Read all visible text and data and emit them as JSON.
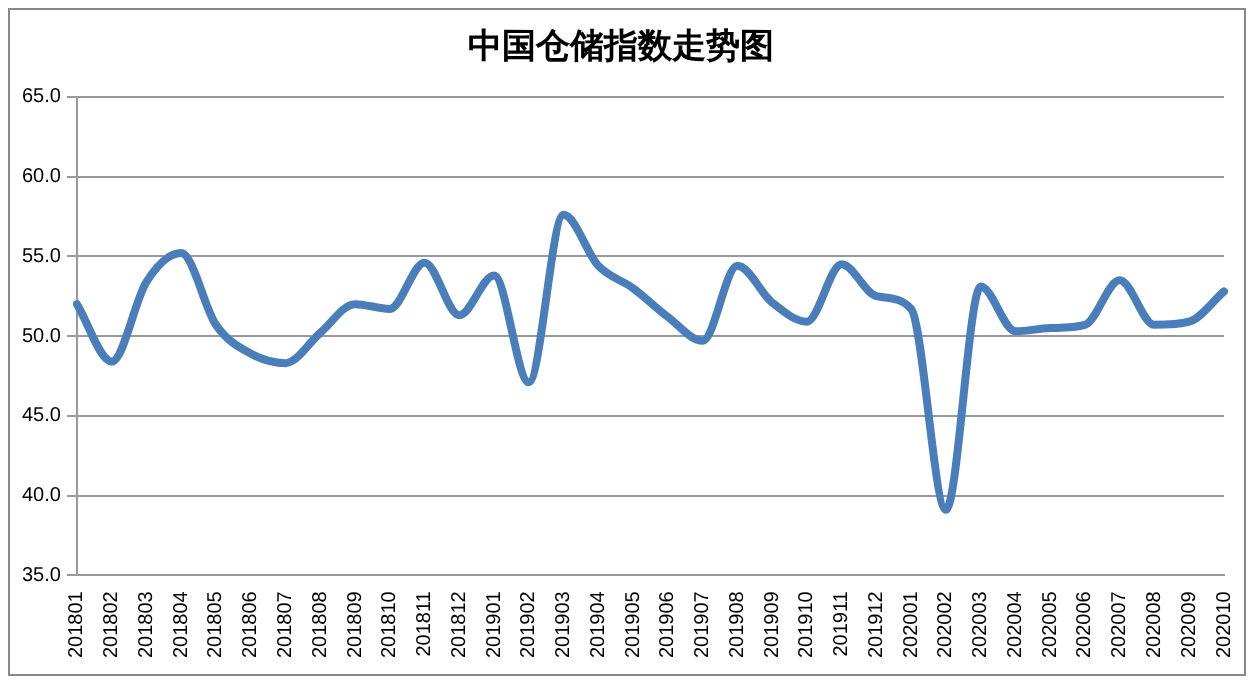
{
  "chart_data": {
    "type": "line",
    "title": "中国仓储指数走势图",
    "categories": [
      "201801",
      "201802",
      "201803",
      "201804",
      "201805",
      "201806",
      "201807",
      "201808",
      "201809",
      "201810",
      "201811",
      "201812",
      "201901",
      "201902",
      "201903",
      "201904",
      "201905",
      "201906",
      "201907",
      "201908",
      "201909",
      "201910",
      "201911",
      "201912",
      "202001",
      "202002",
      "202003",
      "202004",
      "202005",
      "202006",
      "202007",
      "202008",
      "202009",
      "202010"
    ],
    "series": [
      {
        "color": "#4a7ebb",
        "values": [
          52.0,
          48.4,
          53.4,
          55.2,
          50.7,
          48.9,
          48.3,
          50.2,
          52.0,
          51.7,
          54.6,
          51.3,
          53.8,
          47.1,
          57.6,
          54.4,
          53.0,
          51.2,
          49.7,
          54.4,
          52.1,
          50.9,
          54.5,
          52.5,
          51.7,
          39.1,
          53.1,
          50.3,
          50.5,
          50.7,
          53.5,
          50.7,
          50.9,
          52.8
        ]
      }
    ],
    "ylim": [
      35,
      65
    ],
    "yticks": [
      {
        "value": 35,
        "label": "35.0"
      },
      {
        "value": 40,
        "label": "40.0"
      },
      {
        "value": 45,
        "label": "45.0"
      },
      {
        "value": 50,
        "label": "50.0"
      },
      {
        "value": 55,
        "label": "55.0"
      },
      {
        "value": 60,
        "label": "60.0"
      },
      {
        "value": 65,
        "label": "65.0"
      }
    ],
    "grid": "y",
    "legend": false,
    "marker": "none",
    "line_style": "solid"
  }
}
